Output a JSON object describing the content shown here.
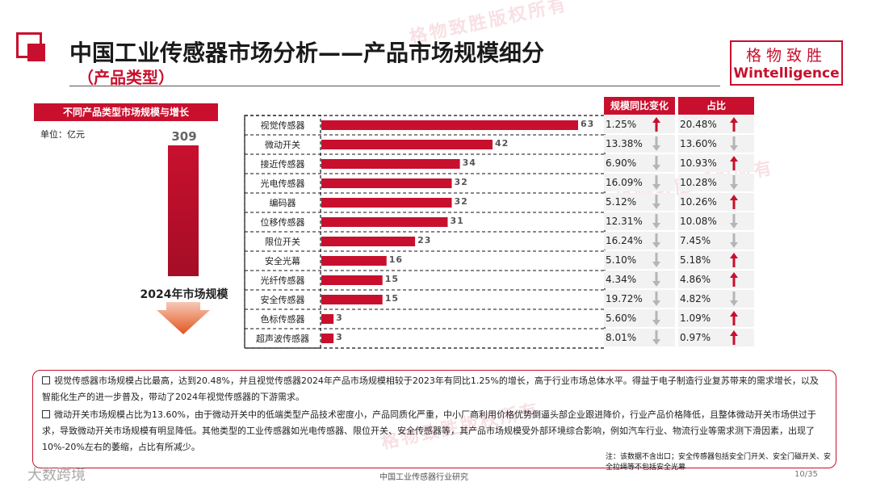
{
  "header": {
    "title": "中国工业传感器市场分析——产品市场规模细分",
    "subtitle": "（产品类型）",
    "brand_cn": "格物致胜",
    "brand_en": "Wintelligence"
  },
  "left_panel": {
    "section_title": "不同产品类型市场规模与增长",
    "unit": "单位：亿元",
    "total_value": "309",
    "total_label": "2024年市场规模"
  },
  "table": {
    "col_yoy": "规模同比变化",
    "col_share": "占比"
  },
  "chart_data": {
    "type": "bar",
    "orientation": "horizontal",
    "categories": [
      "视觉传感器",
      "微动开关",
      "接近传感器",
      "光电传感器",
      "编码器",
      "位移传感器",
      "限位开关",
      "安全光幕",
      "光纤传感器",
      "安全传感器",
      "色标传感器",
      "超声波传感器"
    ],
    "values": [
      63,
      42,
      34,
      32,
      32,
      31,
      23,
      16,
      15,
      15,
      3,
      3
    ],
    "value_labels": [
      "63",
      "42",
      "34",
      "32",
      "32",
      "31",
      "23",
      "16",
      "15",
      "15",
      "3",
      "3"
    ],
    "yoy": [
      "1.25%",
      "13.38%",
      "6.90%",
      "16.09%",
      "5.12%",
      "12.31%",
      "16.24%",
      "5.10%",
      "4.34%",
      "19.72%",
      "5.60%",
      "8.01%"
    ],
    "yoy_dir": [
      "up",
      "down",
      "down",
      "down",
      "down",
      "down",
      "down",
      "down",
      "down",
      "down",
      "down",
      "down"
    ],
    "share": [
      "20.48%",
      "13.60%",
      "10.93%",
      "10.28%",
      "10.26%",
      "10.08%",
      "7.45%",
      "5.18%",
      "4.86%",
      "4.82%",
      "1.09%",
      "0.97%"
    ],
    "share_dir": [
      "up",
      "down",
      "up",
      "down",
      "up",
      "down",
      "down",
      "up",
      "up",
      "down",
      "up",
      "up"
    ],
    "xlim": [
      0,
      63
    ],
    "colors": {
      "bar": "#c8102e",
      "up": "#c8102e",
      "down": "#b5b5b5"
    }
  },
  "notes": [
    "视觉传感器市场规模占比最高，达到20.48%，并且视觉传感器2024年产品市场规模相较于2023年有同比1.25%的增长，高于行业市场总体水平。得益于电子制造行业复苏带来的需求增长，以及智能化生产的进一步普及，带动了2024年视觉传感器的下游需求。",
    "微动开关市场规模占比为13.60%，由于微动开关中的低端类型产品技术密度小，产品同质化严重，中小厂商利用价格优势倒逼头部企业跟进降价，行业产品价格降低，且整体微动开关市场供过于求，导致微动开关市场规模有明显降低。其他类型的工业传感器如光电传感器、限位开关、安全传感器等，其产品市场规模受外部环境综合影响，例如汽车行业、物流行业等需求测下滑因素，出现了10%-20%左右的萎缩，占比有所减少。"
  ],
  "footnote": "注：该数据不含出口；安全传感器包括安全门开关、安全门磁开关、安全拉绳等不包括安全光幕",
  "footer": {
    "report_title": "中国工业传感器行业研究",
    "page": "10/35",
    "watermark_brand": "大数跨境",
    "watermark": "格物致胜版权所有"
  }
}
